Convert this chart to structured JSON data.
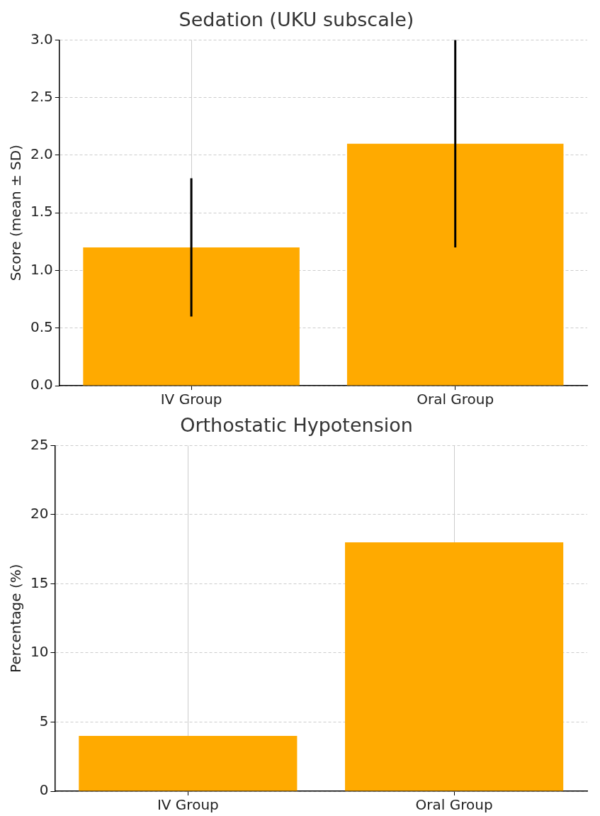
{
  "chart_data": [
    {
      "type": "bar",
      "title": "Sedation (UKU subscale)",
      "ylabel": "Score (mean ± SD)",
      "categories": [
        "IV Group",
        "Oral Group"
      ],
      "values": [
        1.2,
        2.1
      ],
      "errors": [
        0.6,
        0.9
      ],
      "color": "#ffaa00",
      "ylim": [
        0,
        3
      ],
      "yticks": [
        {
          "value": 0,
          "label": "0.0"
        },
        {
          "value": 0.5,
          "label": "0.5"
        },
        {
          "value": 1,
          "label": "1.0"
        },
        {
          "value": 1.5,
          "label": "1.5"
        },
        {
          "value": 2,
          "label": "2.0"
        },
        {
          "value": 2.5,
          "label": "2.5"
        },
        {
          "value": 3,
          "label": "3.0"
        }
      ],
      "grid": true
    },
    {
      "type": "bar",
      "title": "Orthostatic Hypotension",
      "ylabel": "Percentage (%)",
      "categories": [
        "IV Group",
        "Oral Group"
      ],
      "values": [
        4,
        18
      ],
      "color": "#ffaa00",
      "ylim": [
        0,
        25
      ],
      "yticks": [
        0,
        5,
        10,
        15,
        20,
        25
      ],
      "grid": true
    }
  ]
}
